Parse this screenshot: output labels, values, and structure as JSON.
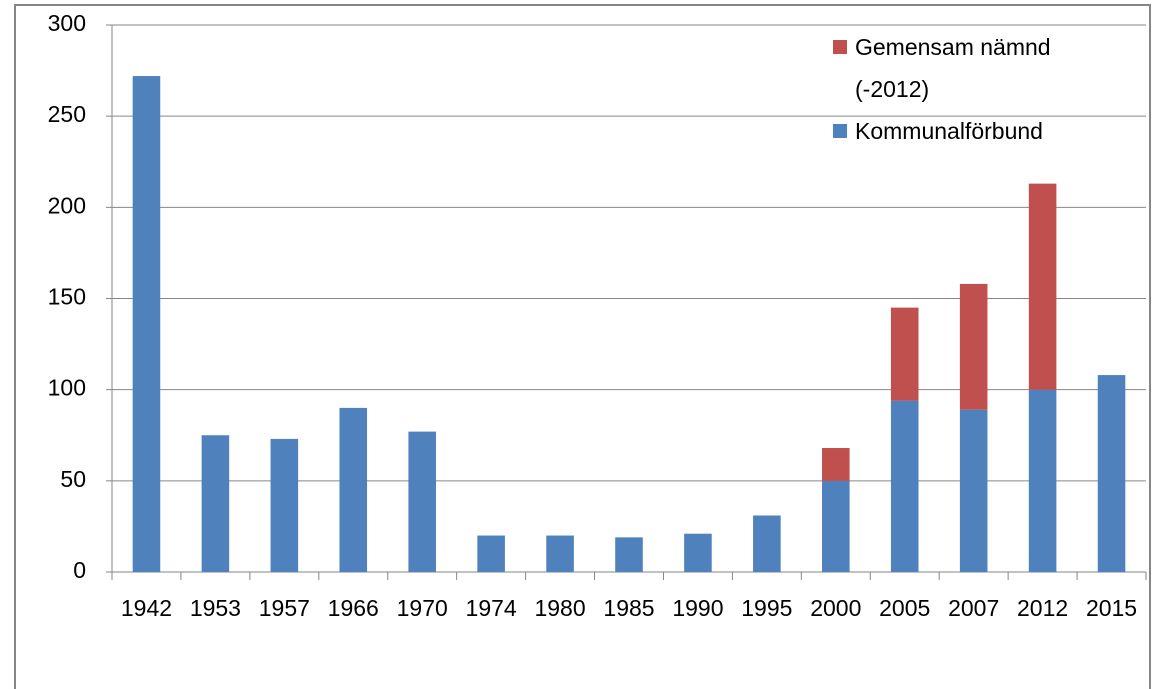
{
  "chart_data": {
    "type": "bar",
    "stacked": true,
    "categories": [
      "1942",
      "1953",
      "1957",
      "1966",
      "1970",
      "1974",
      "1980",
      "1985",
      "1990",
      "1995",
      "2000",
      "2005",
      "2007",
      "2012",
      "2015"
    ],
    "series": [
      {
        "name": "Kommunalförbund",
        "color": "#4f81bd",
        "values": [
          272,
          75,
          73,
          90,
          77,
          20,
          20,
          19,
          21,
          31,
          50,
          94,
          89,
          100,
          108
        ]
      },
      {
        "name": "Gemensam nämnd (-2012)",
        "color": "#c0504d",
        "values": [
          null,
          null,
          null,
          null,
          null,
          null,
          null,
          null,
          null,
          null,
          18,
          51,
          69,
          113,
          null
        ]
      }
    ],
    "ylim": [
      0,
      300
    ],
    "yticks": [
      0,
      50,
      100,
      150,
      200,
      250,
      300
    ],
    "grid": true,
    "legend": "top-right"
  }
}
